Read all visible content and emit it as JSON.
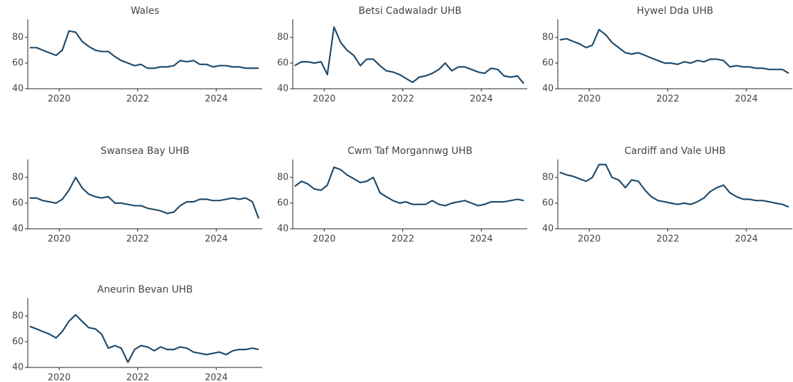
{
  "chart_data": [
    {
      "type": "line",
      "title": "Wales",
      "color": "#1f4a6b",
      "x": [
        2019.25,
        2019.42,
        2019.58,
        2019.75,
        2019.92,
        2020.08,
        2020.25,
        2020.42,
        2020.58,
        2020.75,
        2020.92,
        2021.08,
        2021.25,
        2021.42,
        2021.58,
        2021.75,
        2021.92,
        2022.08,
        2022.25,
        2022.42,
        2022.58,
        2022.75,
        2022.92,
        2023.08,
        2023.25,
        2023.42,
        2023.58,
        2023.75,
        2023.92,
        2024.08,
        2024.25,
        2024.42,
        2024.58,
        2024.75,
        2024.92,
        2025.08
      ],
      "values": [
        72,
        72,
        70,
        68,
        66,
        70,
        85,
        84,
        77,
        73,
        70,
        69,
        69,
        65,
        62,
        60,
        58,
        59,
        56,
        56,
        57,
        57,
        58,
        62,
        61,
        62,
        59,
        59,
        57,
        58,
        58,
        57,
        57,
        56,
        56,
        56
      ],
      "xlim": [
        2019.2,
        2025.17
      ],
      "xticks": [
        2020,
        2022,
        2024
      ],
      "ylim": [
        40,
        94
      ],
      "yticks": [
        40,
        60,
        80
      ]
    },
    {
      "type": "line",
      "title": "Betsi Cadwaladr UHB",
      "color": "#1f4a6b",
      "x": [
        2019.25,
        2019.42,
        2019.58,
        2019.75,
        2019.92,
        2020.08,
        2020.25,
        2020.42,
        2020.58,
        2020.75,
        2020.92,
        2021.08,
        2021.25,
        2021.42,
        2021.58,
        2021.75,
        2021.92,
        2022.08,
        2022.25,
        2022.42,
        2022.58,
        2022.75,
        2022.92,
        2023.08,
        2023.25,
        2023.42,
        2023.58,
        2023.75,
        2023.92,
        2024.08,
        2024.25,
        2024.42,
        2024.58,
        2024.75,
        2024.92,
        2025.08
      ],
      "values": [
        58,
        61,
        61,
        60,
        61,
        51,
        88,
        76,
        70,
        66,
        58,
        63,
        63,
        58,
        54,
        53,
        51,
        48,
        45,
        49,
        50,
        52,
        55,
        60,
        54,
        57,
        57,
        55,
        53,
        52,
        56,
        55,
        50,
        49,
        50,
        44
      ],
      "xlim": [
        2019.2,
        2025.17
      ],
      "xticks": [
        2020,
        2022,
        2024
      ],
      "ylim": [
        40,
        94
      ],
      "yticks": [
        40,
        60,
        80
      ]
    },
    {
      "type": "line",
      "title": "Hywel Dda UHB",
      "color": "#1f4a6b",
      "x": [
        2019.25,
        2019.42,
        2019.58,
        2019.75,
        2019.92,
        2020.08,
        2020.25,
        2020.42,
        2020.58,
        2020.75,
        2020.92,
        2021.08,
        2021.25,
        2021.42,
        2021.58,
        2021.75,
        2021.92,
        2022.08,
        2022.25,
        2022.42,
        2022.58,
        2022.75,
        2022.92,
        2023.08,
        2023.25,
        2023.42,
        2023.58,
        2023.75,
        2023.92,
        2024.08,
        2024.25,
        2024.42,
        2024.58,
        2024.75,
        2024.92,
        2025.08
      ],
      "values": [
        78,
        79,
        77,
        75,
        72,
        74,
        86,
        82,
        76,
        72,
        68,
        67,
        68,
        66,
        64,
        62,
        60,
        60,
        59,
        61,
        60,
        62,
        61,
        63,
        63,
        62,
        57,
        58,
        57,
        57,
        56,
        56,
        55,
        55,
        55,
        52
      ],
      "xlim": [
        2019.2,
        2025.17
      ],
      "xticks": [
        2020,
        2022,
        2024
      ],
      "ylim": [
        40,
        94
      ],
      "yticks": [
        40,
        60,
        80
      ]
    },
    {
      "type": "line",
      "title": "Swansea Bay UHB",
      "color": "#1f4a6b",
      "x": [
        2019.25,
        2019.42,
        2019.58,
        2019.75,
        2019.92,
        2020.08,
        2020.25,
        2020.42,
        2020.58,
        2020.75,
        2020.92,
        2021.08,
        2021.25,
        2021.42,
        2021.58,
        2021.75,
        2021.92,
        2022.08,
        2022.25,
        2022.42,
        2022.58,
        2022.75,
        2022.92,
        2023.08,
        2023.25,
        2023.42,
        2023.58,
        2023.75,
        2023.92,
        2024.08,
        2024.25,
        2024.42,
        2024.58,
        2024.75,
        2024.92,
        2025.08
      ],
      "values": [
        64,
        64,
        62,
        61,
        60,
        63,
        70,
        80,
        72,
        67,
        65,
        64,
        65,
        60,
        60,
        59,
        58,
        58,
        56,
        55,
        54,
        52,
        53,
        58,
        61,
        61,
        63,
        63,
        62,
        62,
        63,
        64,
        63,
        64,
        61,
        48
      ],
      "xlim": [
        2019.2,
        2025.17
      ],
      "xticks": [
        2020,
        2022,
        2024
      ],
      "ylim": [
        40,
        94
      ],
      "yticks": [
        40,
        60,
        80
      ]
    },
    {
      "type": "line",
      "title": "Cwm Taf Morgannwg UHB",
      "color": "#1f4a6b",
      "x": [
        2019.25,
        2019.42,
        2019.58,
        2019.75,
        2019.92,
        2020.08,
        2020.25,
        2020.42,
        2020.58,
        2020.75,
        2020.92,
        2021.08,
        2021.25,
        2021.42,
        2021.58,
        2021.75,
        2021.92,
        2022.08,
        2022.25,
        2022.42,
        2022.58,
        2022.75,
        2022.92,
        2023.08,
        2023.25,
        2023.42,
        2023.58,
        2023.75,
        2023.92,
        2024.08,
        2024.25,
        2024.42,
        2024.58,
        2024.75,
        2024.92,
        2025.08
      ],
      "values": [
        73,
        77,
        75,
        71,
        70,
        74,
        88,
        86,
        82,
        79,
        76,
        77,
        80,
        68,
        65,
        62,
        60,
        61,
        59,
        59,
        59,
        62,
        59,
        58,
        60,
        61,
        62,
        60,
        58,
        59,
        61,
        61,
        61,
        62,
        63,
        62
      ],
      "xlim": [
        2019.2,
        2025.17
      ],
      "xticks": [
        2020,
        2022,
        2024
      ],
      "ylim": [
        40,
        94
      ],
      "yticks": [
        40,
        60,
        80
      ]
    },
    {
      "type": "line",
      "title": "Cardiff and Vale UHB",
      "color": "#1f4a6b",
      "x": [
        2019.25,
        2019.42,
        2019.58,
        2019.75,
        2019.92,
        2020.08,
        2020.25,
        2020.42,
        2020.58,
        2020.75,
        2020.92,
        2021.08,
        2021.25,
        2021.42,
        2021.58,
        2021.75,
        2021.92,
        2022.08,
        2022.25,
        2022.42,
        2022.58,
        2022.75,
        2022.92,
        2023.08,
        2023.25,
        2023.42,
        2023.58,
        2023.75,
        2023.92,
        2024.08,
        2024.25,
        2024.42,
        2024.58,
        2024.75,
        2024.92,
        2025.08
      ],
      "values": [
        84,
        82,
        81,
        79,
        77,
        80,
        90,
        90,
        80,
        78,
        72,
        78,
        77,
        70,
        65,
        62,
        61,
        60,
        59,
        60,
        59,
        61,
        64,
        69,
        72,
        74,
        68,
        65,
        63,
        63,
        62,
        62,
        61,
        60,
        59,
        57
      ],
      "xlim": [
        2019.2,
        2025.17
      ],
      "xticks": [
        2020,
        2022,
        2024
      ],
      "ylim": [
        40,
        94
      ],
      "yticks": [
        40,
        60,
        80
      ]
    },
    {
      "type": "line",
      "title": "Aneurin Bevan UHB",
      "color": "#1f4a6b",
      "x": [
        2019.25,
        2019.42,
        2019.58,
        2019.75,
        2019.92,
        2020.08,
        2020.25,
        2020.42,
        2020.58,
        2020.75,
        2020.92,
        2021.08,
        2021.25,
        2021.42,
        2021.58,
        2021.75,
        2021.92,
        2022.08,
        2022.25,
        2022.42,
        2022.58,
        2022.75,
        2022.92,
        2023.08,
        2023.25,
        2023.42,
        2023.58,
        2023.75,
        2023.92,
        2024.08,
        2024.25,
        2024.42,
        2024.58,
        2024.75,
        2024.92,
        2025.08
      ],
      "values": [
        72,
        70,
        68,
        66,
        63,
        68,
        76,
        81,
        76,
        71,
        70,
        66,
        55,
        57,
        55,
        44,
        54,
        57,
        56,
        53,
        56,
        54,
        54,
        56,
        55,
        52,
        51,
        50,
        51,
        52,
        50,
        53,
        54,
        54,
        55,
        54
      ],
      "xlim": [
        2019.2,
        2025.17
      ],
      "xticks": [
        2020,
        2022,
        2024
      ],
      "ylim": [
        40,
        94
      ],
      "yticks": [
        40,
        60,
        80
      ]
    }
  ]
}
